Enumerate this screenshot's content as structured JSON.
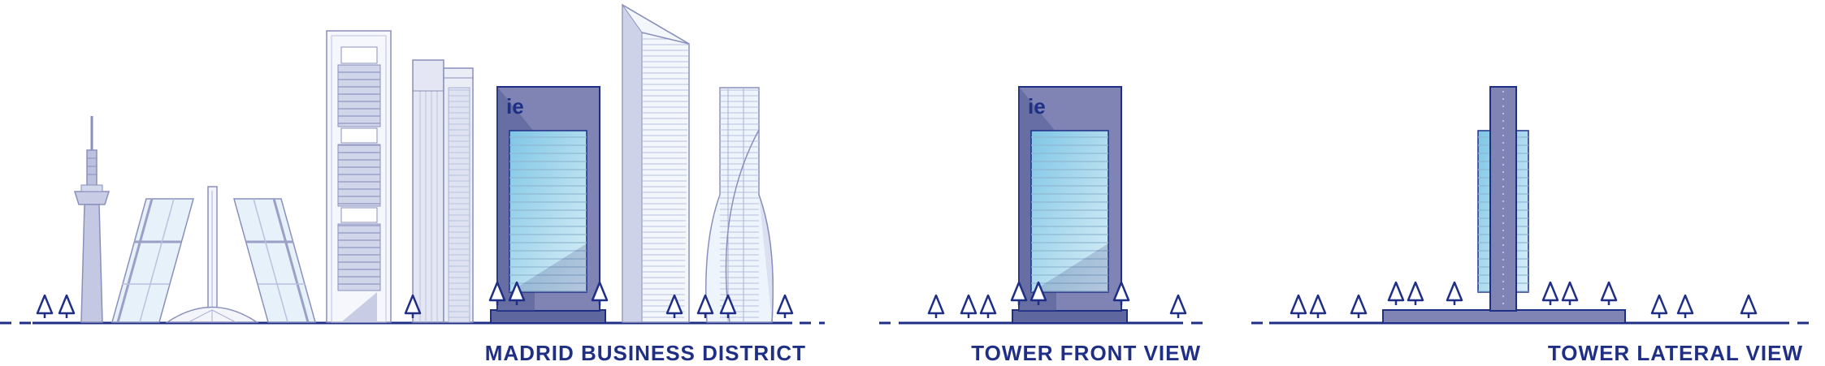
{
  "captions": {
    "district": "MADRID BUSINESS DISTRICT",
    "front": "TOWER FRONT VIEW",
    "lateral": "TOWER LATERAL VIEW"
  },
  "logo": {
    "text": "ie"
  },
  "colors": {
    "navy": "#1f2f86",
    "tower_body": "#7f84b5",
    "tower_dark": "#4b548f",
    "glass_light": "#c4e3f2",
    "glass_mid": "#a5d4ea",
    "outline_light": "#aab1d6",
    "fill_light": "#eef1fa",
    "fill_mid": "#d4d8ec"
  },
  "icons": [
    "tree-icon"
  ]
}
